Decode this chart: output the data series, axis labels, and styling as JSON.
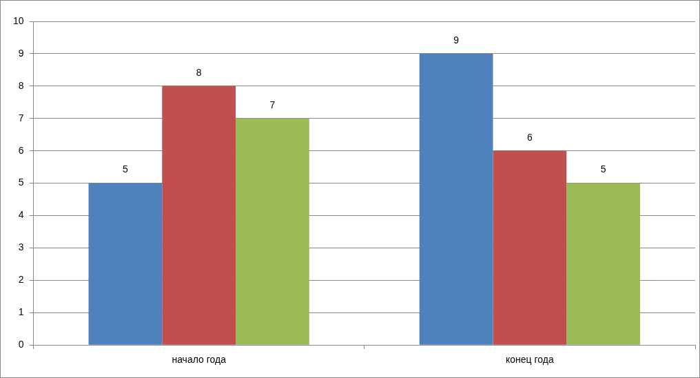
{
  "chart_data": {
    "type": "bar",
    "categories": [
      "начало года",
      "конец года"
    ],
    "series": [
      {
        "color": "#4f81bd",
        "values": [
          5,
          9
        ]
      },
      {
        "color": "#c0504d",
        "values": [
          8,
          6
        ]
      },
      {
        "color": "#9bbb59",
        "values": [
          7,
          5
        ]
      }
    ],
    "ylim": [
      0,
      10
    ],
    "yticks": [
      0,
      1,
      2,
      3,
      4,
      5,
      6,
      7,
      8,
      9,
      10
    ],
    "grid": "y",
    "legend": false,
    "data_labels": true
  }
}
